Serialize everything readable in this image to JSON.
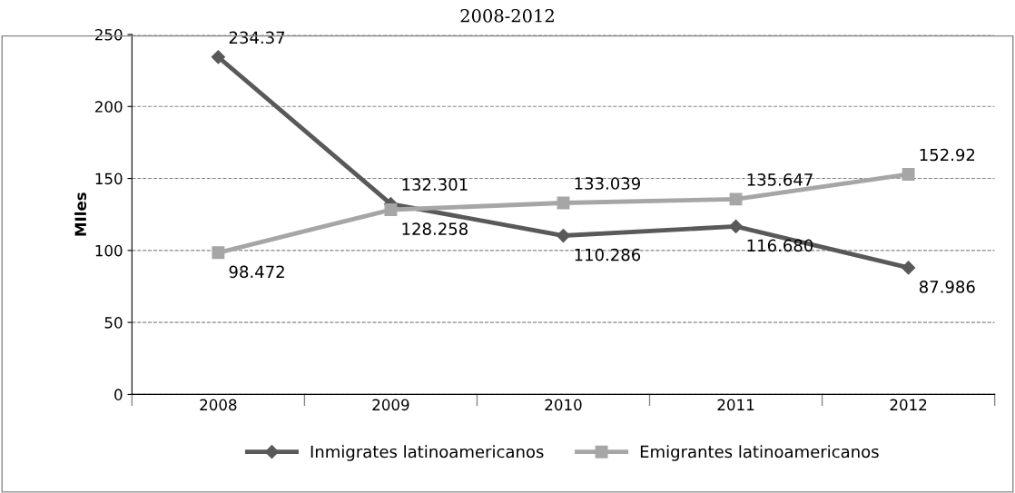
{
  "chart_data": {
    "type": "line",
    "title": "2008-2012",
    "ylabel": "MIles",
    "categories": [
      "2008",
      "2009",
      "2010",
      "2011",
      "2012"
    ],
    "series": [
      {
        "name": "Inmigrates latinoamericanos",
        "color": "#595959",
        "marker": "diamond",
        "values": [
          234.37,
          132.301,
          110.286,
          116.68,
          87.986
        ],
        "value_labels": [
          "234.37",
          "132.301",
          "110.286",
          "116.680",
          "87.986"
        ]
      },
      {
        "name": "Emigrantes latinoamericanos",
        "color": "#a6a6a6",
        "marker": "square",
        "values": [
          98.472,
          128.258,
          133.039,
          135.647,
          152.92
        ],
        "value_labels": [
          "98.472",
          "128.258",
          "133.039",
          "135.647",
          "152.92"
        ]
      }
    ],
    "ylim": [
      0,
      250
    ],
    "yticks": [
      0,
      50,
      100,
      150,
      200,
      250
    ],
    "grid": "y",
    "legend": "bottom",
    "line_style": "solid"
  }
}
